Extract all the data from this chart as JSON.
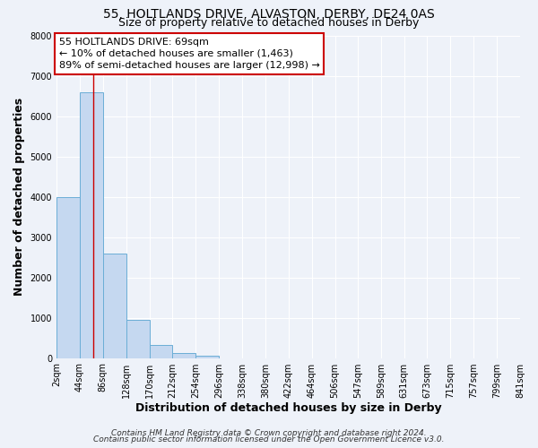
{
  "title1": "55, HOLTLANDS DRIVE, ALVASTON, DERBY, DE24 0AS",
  "title2": "Size of property relative to detached houses in Derby",
  "xlabel": "Distribution of detached houses by size in Derby",
  "ylabel": "Number of detached properties",
  "bar_values": [
    4000,
    6600,
    2600,
    950,
    320,
    120,
    50,
    0,
    0,
    0,
    0,
    0,
    0,
    0,
    0,
    0,
    0,
    0,
    0,
    0
  ],
  "bin_edges": [
    2,
    44,
    86,
    128,
    170,
    212,
    254,
    296,
    338,
    380,
    422,
    464,
    506,
    547,
    589,
    631,
    673,
    715,
    757,
    799,
    841
  ],
  "tick_labels": [
    "2sqm",
    "44sqm",
    "86sqm",
    "128sqm",
    "170sqm",
    "212sqm",
    "254sqm",
    "296sqm",
    "338sqm",
    "380sqm",
    "422sqm",
    "464sqm",
    "506sqm",
    "547sqm",
    "589sqm",
    "631sqm",
    "673sqm",
    "715sqm",
    "757sqm",
    "799sqm",
    "841sqm"
  ],
  "bar_color": "#c5d8f0",
  "bar_edge_color": "#6baed6",
  "property_line_x": 69,
  "property_line_color": "#cc0000",
  "ylim": [
    0,
    8000
  ],
  "yticks": [
    0,
    1000,
    2000,
    3000,
    4000,
    5000,
    6000,
    7000,
    8000
  ],
  "annotation_line1": "55 HOLTLANDS DRIVE: 69sqm",
  "annotation_line2": "← 10% of detached houses are smaller (1,463)",
  "annotation_line3": "89% of semi-detached houses are larger (12,998) →",
  "footnote1": "Contains HM Land Registry data © Crown copyright and database right 2024.",
  "footnote2": "Contains public sector information licensed under the Open Government Licence v3.0.",
  "background_color": "#eef2f9",
  "grid_color": "#ffffff",
  "title_fontsize": 10,
  "subtitle_fontsize": 9,
  "axis_label_fontsize": 9,
  "tick_fontsize": 7,
  "annotation_fontsize": 8,
  "footnote_fontsize": 6.5
}
